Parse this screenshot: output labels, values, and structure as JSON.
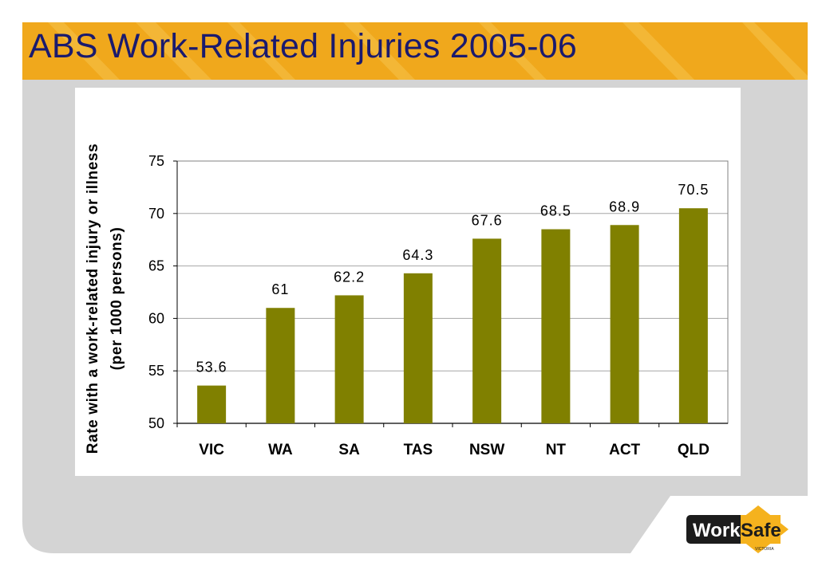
{
  "slide": {
    "title": "ABS Work-Related Injuries 2005-06"
  },
  "logo": {
    "text": "WorkSafe",
    "subtext": "VICTORIA"
  },
  "colors": {
    "header_yellow": "#f0a81c",
    "header_stripe": "#f6c34c",
    "slide_gray": "#d4d4d4",
    "bar": "#808000",
    "title_text": "#1a1a6e",
    "logo_dark": "#1c1c1c",
    "logo_yellow": "#f5b21e"
  },
  "chart_data": {
    "type": "bar",
    "categories": [
      "VIC",
      "WA",
      "SA",
      "TAS",
      "NSW",
      "NT",
      "ACT",
      "QLD"
    ],
    "values": [
      53.6,
      61,
      62.2,
      64.3,
      67.6,
      68.5,
      68.9,
      70.5
    ],
    "data_labels": [
      "53.6",
      "61",
      "62.2",
      "64.3",
      "67.6",
      "68.5",
      "68.9",
      "70.5"
    ],
    "ylabel_lines": [
      "Rate with a work-related injury or illness",
      "(per 1000 persons)"
    ],
    "xlabel": "",
    "ylim": [
      50,
      75
    ],
    "yticks": [
      50,
      55,
      60,
      65,
      70,
      75
    ],
    "grid": true,
    "legend": "none"
  }
}
